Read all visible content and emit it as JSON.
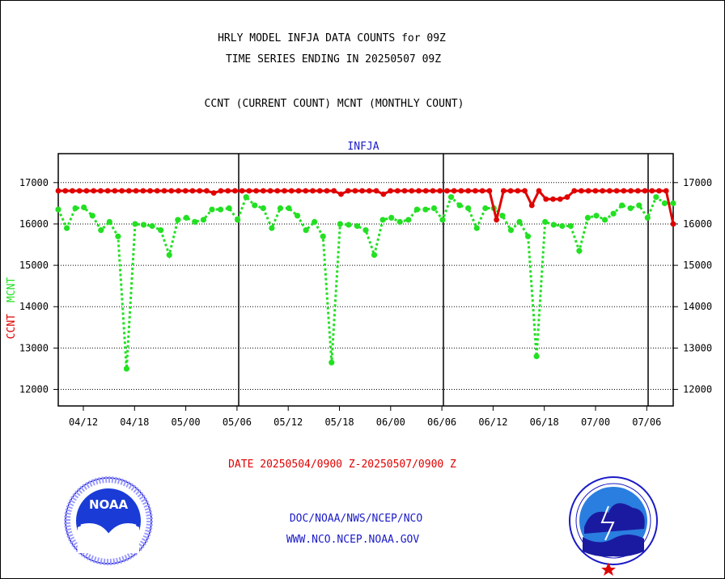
{
  "title_line1": "HRLY MODEL INFJA DATA COUNTS for 09Z",
  "title_line2": "TIME SERIES ENDING IN 20250507 09Z",
  "subtitle": "CCNT (CURRENT COUNT) MCNT (MONTHLY COUNT)",
  "panel_label": "INFJA",
  "ylabel_ccnt": "CCNT",
  "ylabel_mcnt": "MCNT",
  "date_range": "DATE 20250504/0900 Z-20250507/0900 Z",
  "footer_line1": "DOC/NOAA/NWS/NCEP/NCO",
  "footer_line2": "WWW.NCO.NCEP.NOAA.GOV",
  "logo_left_text": "NOAA",
  "colors": {
    "ccnt": "#e00000",
    "mcnt": "#22e022",
    "footer": "#1a1ac8",
    "date": "#e00000",
    "panel_label": "#1a1ac8"
  },
  "chart_data": {
    "type": "line",
    "x_tick_labels": [
      "04/12",
      "04/18",
      "05/00",
      "05/06",
      "05/12",
      "05/18",
      "06/00",
      "06/06",
      "06/12",
      "06/18",
      "07/00",
      "07/06"
    ],
    "y_tick_labels": [
      "12000",
      "13000",
      "14000",
      "15000",
      "16000",
      "17000"
    ],
    "ylim": [
      11600,
      17700
    ],
    "grid": "horizontal dotted",
    "series": [
      {
        "name": "CCNT",
        "values": [
          16800,
          16800,
          16800,
          16800,
          16800,
          16800,
          16800,
          16800,
          16800,
          16800,
          16800,
          16800,
          16800,
          16800,
          16800,
          16800,
          16800,
          16800,
          16800,
          16800,
          16800,
          16800,
          16750,
          16800,
          16800,
          16800,
          16800,
          16800,
          16800,
          16800,
          16800,
          16800,
          16800,
          16800,
          16800,
          16800,
          16800,
          16800,
          16800,
          16800,
          16720,
          16800,
          16800,
          16800,
          16800,
          16800,
          16720,
          16800,
          16800,
          16800,
          16800,
          16800,
          16800,
          16800,
          16800,
          16800,
          16800,
          16800,
          16800,
          16800,
          16800,
          16800,
          16100,
          16800,
          16800,
          16800,
          16800,
          16450,
          16800,
          16600,
          16600,
          16600,
          16650,
          16800,
          16800,
          16800,
          16800,
          16800,
          16800,
          16800,
          16800,
          16800,
          16800,
          16800,
          16800,
          16800,
          16800,
          16000
        ]
      },
      {
        "name": "MCNT",
        "values": [
          16350,
          15900,
          16380,
          16400,
          16200,
          15850,
          16050,
          15700,
          12500,
          16000,
          15980,
          15950,
          15850,
          15250,
          16100,
          16150,
          16050,
          16100,
          16350,
          16350,
          16380,
          16100,
          16650,
          16450,
          16380,
          15900,
          16380,
          16380,
          16200,
          15850,
          16050,
          15700,
          12650,
          16000,
          15980,
          15950,
          15850,
          15250,
          16100,
          16150,
          16050,
          16100,
          16350,
          16350,
          16380,
          16100,
          16650,
          16450,
          16380,
          15900,
          16380,
          16380,
          16200,
          15850,
          16050,
          15700,
          12800,
          16050,
          15980,
          15950,
          15950,
          15350,
          16150,
          16200,
          16100,
          16250,
          16450,
          16380,
          16450,
          16150,
          16650,
          16500,
          16500
        ]
      }
    ]
  }
}
